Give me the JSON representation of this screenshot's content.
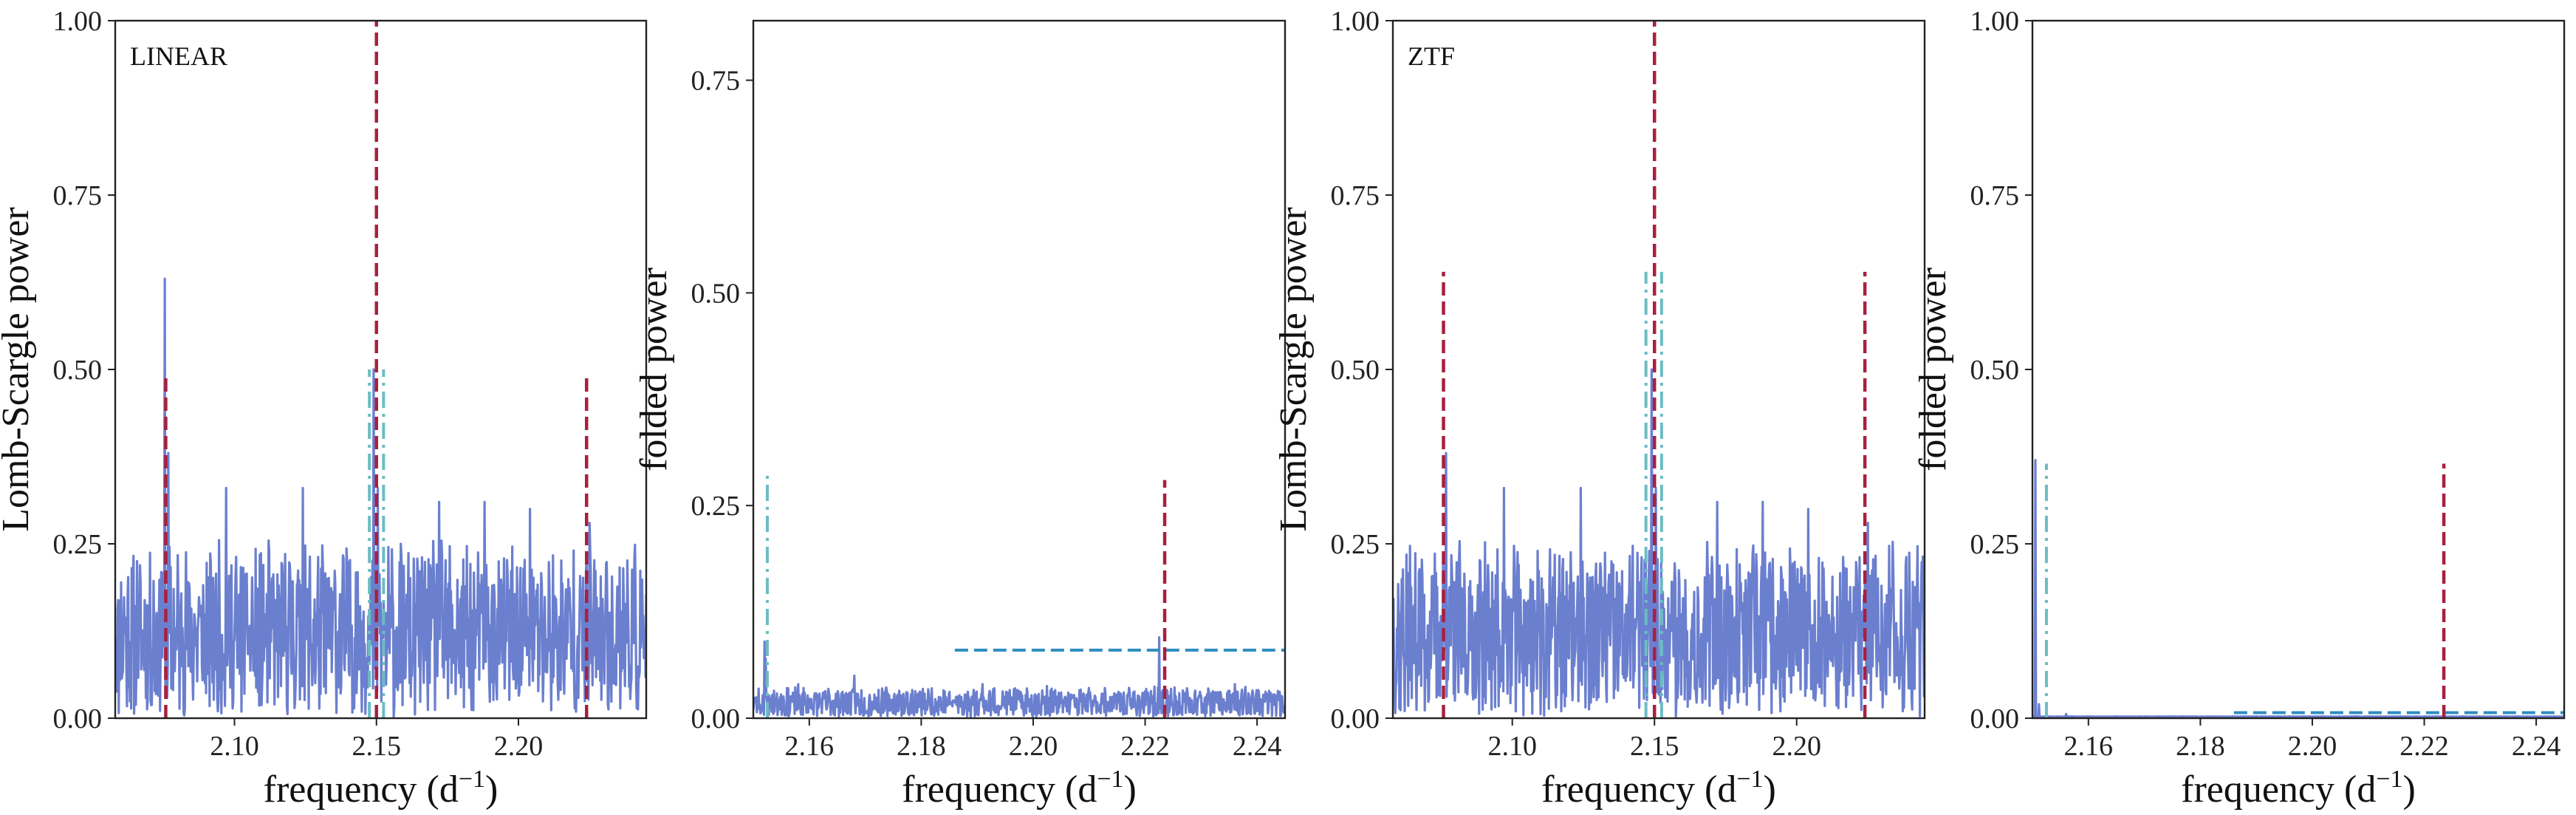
{
  "chart_data": [
    {
      "type": "line",
      "label": "LINEAR",
      "xlabel": "frequency (d",
      "xlabel_sup": "−1",
      "xlabel_close": ")",
      "ylabel": "Lomb-Scargle power",
      "xlim": [
        2.058,
        2.245
      ],
      "ylim": [
        0.0,
        1.0
      ],
      "xticks": [
        2.1,
        2.15,
        2.2
      ],
      "xtick_labels": [
        "2.10",
        "2.15",
        "2.20"
      ],
      "yticks": [
        0.0,
        0.25,
        0.5,
        0.75,
        1.0
      ],
      "ytick_labels": [
        "0.00",
        "0.25",
        "0.50",
        "0.75",
        "1.00"
      ],
      "grid": false,
      "periodogram": {
        "seed": 11,
        "base": 0.12,
        "amp": 0.11,
        "spikes": [
          [
            2.0755,
            0.63
          ],
          [
            2.0768,
            0.38
          ],
          [
            2.149,
            0.5
          ],
          [
            2.1505,
            0.33
          ],
          [
            2.097,
            0.33
          ],
          [
            2.124,
            0.33
          ],
          [
            2.172,
            0.31
          ],
          [
            2.188,
            0.31
          ],
          [
            2.204,
            0.3
          ],
          [
            2.225,
            0.28
          ]
        ]
      },
      "vlines_red": [
        {
          "x": 2.0758,
          "y": 0.49
        },
        {
          "x": 2.15,
          "y": 1.0
        },
        {
          "x": 2.224,
          "y": 0.49
        }
      ],
      "vlines_cyan": [
        {
          "x": 2.1475,
          "y": 0.5
        },
        {
          "x": 2.1525,
          "y": 0.5
        }
      ],
      "hlines_blue": []
    },
    {
      "type": "line",
      "label": "",
      "xlabel": "frequency (d",
      "xlabel_sup": "−1",
      "xlabel_close": ")",
      "ylabel": "folded power",
      "xlim": [
        2.15,
        2.245
      ],
      "ylim": [
        0.0,
        0.82
      ],
      "xticks": [
        2.16,
        2.18,
        2.2,
        2.22,
        2.24
      ],
      "xtick_labels": [
        "2.16",
        "2.18",
        "2.20",
        "2.22",
        "2.24"
      ],
      "yticks": [
        0.0,
        0.25,
        0.5,
        0.75
      ],
      "ytick_labels": [
        "0.00",
        "0.25",
        "0.50",
        "0.75"
      ],
      "grid": false,
      "periodogram": {
        "seed": 23,
        "base": 0.018,
        "amp": 0.016,
        "spikes": [
          [
            2.152,
            0.09
          ],
          [
            2.1522,
            0.07
          ],
          [
            2.2225,
            0.095
          ],
          [
            2.158,
            0.04
          ],
          [
            2.168,
            0.05
          ],
          [
            2.191,
            0.04
          ],
          [
            2.236,
            0.04
          ]
        ]
      },
      "vlines_red": [
        {
          "x": 2.2235,
          "y": 0.28
        }
      ],
      "vlines_cyan": [
        {
          "x": 2.1525,
          "y": 0.285
        }
      ],
      "hlines_blue": [
        {
          "y": 0.08,
          "x0": 2.186,
          "x1": 2.245
        }
      ]
    },
    {
      "type": "line",
      "label": "ZTF",
      "xlabel": "frequency (d",
      "xlabel_sup": "−1",
      "xlabel_close": ")",
      "ylabel": "Lomb-Scargle power",
      "xlim": [
        2.058,
        2.245
      ],
      "ylim": [
        0.0,
        1.0
      ],
      "xticks": [
        2.1,
        2.15,
        2.2
      ],
      "xtick_labels": [
        "2.10",
        "2.15",
        "2.20"
      ],
      "yticks": [
        0.0,
        0.25,
        0.5,
        0.75,
        1.0
      ],
      "ytick_labels": [
        "0.00",
        "0.25",
        "0.50",
        "0.75",
        "1.00"
      ],
      "grid": false,
      "periodogram": {
        "seed": 37,
        "base": 0.12,
        "amp": 0.11,
        "spikes": [
          [
            2.0768,
            0.38
          ],
          [
            2.149,
            0.5
          ],
          [
            2.1505,
            0.33
          ],
          [
            2.097,
            0.33
          ],
          [
            2.124,
            0.33
          ],
          [
            2.172,
            0.31
          ],
          [
            2.188,
            0.31
          ],
          [
            2.204,
            0.3
          ],
          [
            2.225,
            0.28
          ]
        ]
      },
      "vlines_red": [
        {
          "x": 2.0758,
          "y": 0.64
        },
        {
          "x": 2.15,
          "y": 1.0
        },
        {
          "x": 2.224,
          "y": 0.64
        }
      ],
      "vlines_cyan": [
        {
          "x": 2.147,
          "y": 0.64
        },
        {
          "x": 2.1525,
          "y": 0.64
        }
      ],
      "hlines_blue": []
    },
    {
      "type": "line",
      "label": "",
      "xlabel": "frequency (d",
      "xlabel_sup": "−1",
      "xlabel_close": ")",
      "ylabel": "folded power",
      "xlim": [
        2.15,
        2.245
      ],
      "ylim": [
        0.0,
        1.0
      ],
      "xticks": [
        2.16,
        2.18,
        2.2,
        2.22,
        2.24
      ],
      "xtick_labels": [
        "2.16",
        "2.18",
        "2.20",
        "2.22",
        "2.24"
      ],
      "yticks": [
        0.0,
        0.25,
        0.5,
        0.75,
        1.0
      ],
      "ytick_labels": [
        "0.00",
        "0.25",
        "0.50",
        "0.75",
        "1.00"
      ],
      "grid": false,
      "periodogram": {
        "seed": 51,
        "base": 0.001,
        "amp": 0.0015,
        "spikes": [
          [
            2.1505,
            0.37
          ],
          [
            2.1512,
            0.02
          ],
          [
            2.156,
            0.006
          ]
        ]
      },
      "vlines_red": [
        {
          "x": 2.2235,
          "y": 0.365
        }
      ],
      "vlines_cyan": [
        {
          "x": 2.1525,
          "y": 0.365
        }
      ],
      "hlines_blue": [
        {
          "y": 0.008,
          "x0": 2.186,
          "x1": 2.245
        }
      ]
    }
  ],
  "colors": {
    "series": "#6b7fcf",
    "red_dashed": "#a8203e",
    "cyan_dashdot": "#6cbcc4",
    "blue_dashed": "#2f8dc0",
    "axis": "#222222"
  }
}
